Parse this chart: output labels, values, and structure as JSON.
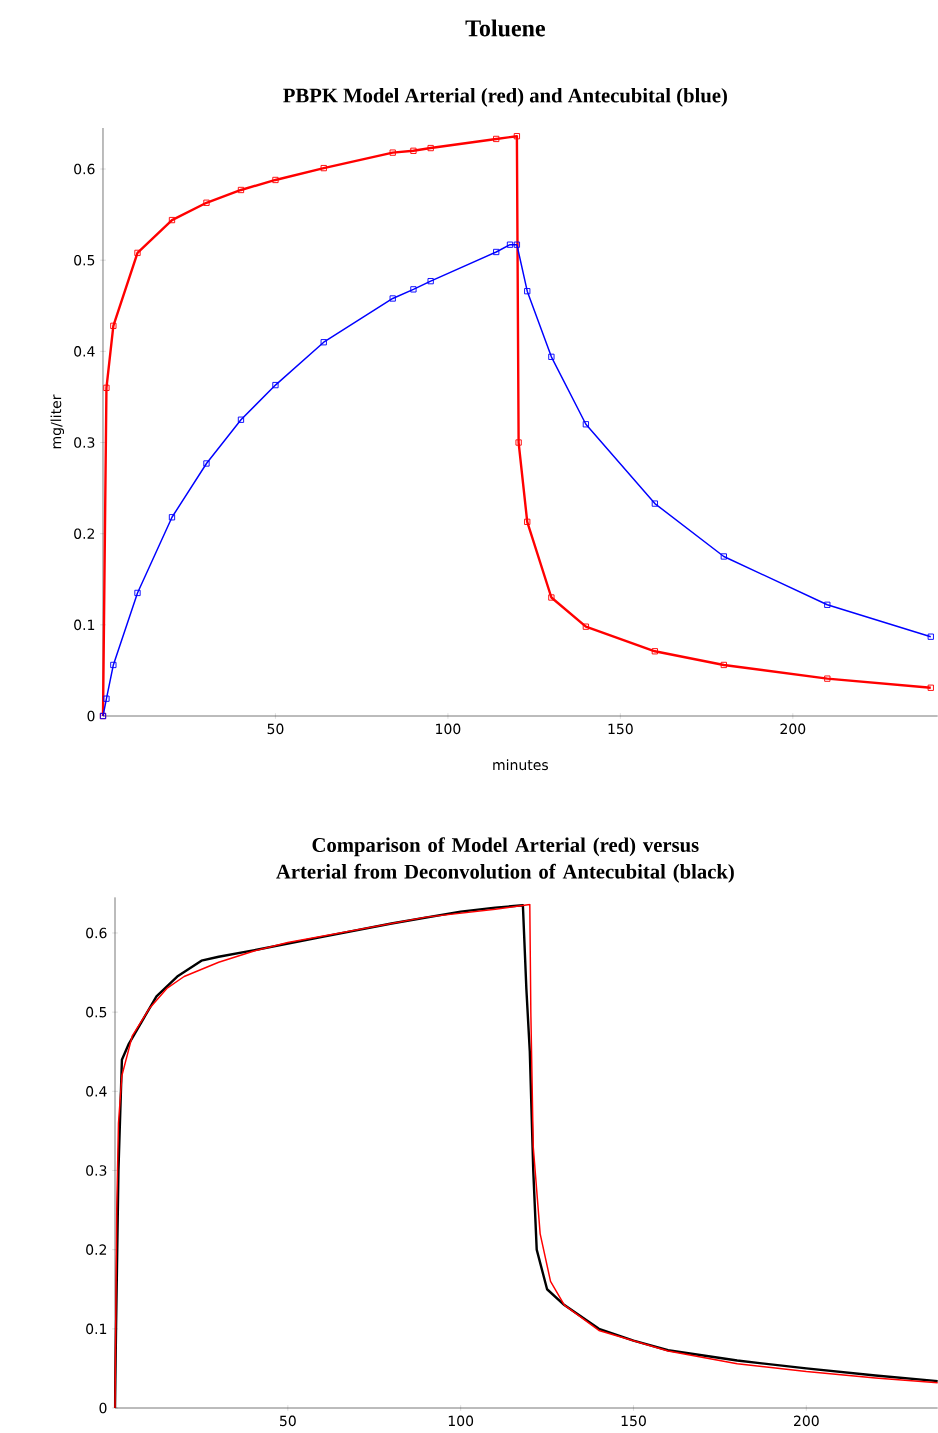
{
  "chart_data": [
    {
      "type": "line",
      "title": "Toluene",
      "subtitle": "PBPK Model Arterial (red) and Antecubital (blue)",
      "xlabel": "minutes",
      "ylabel": "mg/liter",
      "xlim": [
        0,
        242
      ],
      "ylim": [
        0,
        0.645
      ],
      "xticks": [
        50,
        100,
        150,
        200
      ],
      "yticks": [
        0,
        0.1,
        0.2,
        0.3,
        0.4,
        0.5,
        0.6
      ],
      "marker": "square",
      "series": [
        {
          "color": "#ff0000",
          "x": [
            0,
            1,
            3,
            10,
            20,
            30,
            40,
            50,
            64,
            84,
            90,
            95,
            114,
            120,
            120.5,
            123,
            130,
            140,
            160,
            180,
            210,
            240
          ],
          "values": [
            0,
            0.36,
            0.428,
            0.508,
            0.544,
            0.563,
            0.577,
            0.588,
            0.601,
            0.618,
            0.62,
            0.623,
            0.633,
            0.636,
            0.3,
            0.213,
            0.13,
            0.098,
            0.071,
            0.056,
            0.041,
            0.031
          ]
        },
        {
          "color": "#0000ff",
          "x": [
            0,
            1,
            3,
            10,
            20,
            30,
            40,
            50,
            64,
            84,
            90,
            95,
            114,
            118,
            120,
            123,
            130,
            140,
            160,
            180,
            210,
            240
          ],
          "values": [
            0,
            0.019,
            0.056,
            0.135,
            0.218,
            0.277,
            0.325,
            0.363,
            0.41,
            0.458,
            0.468,
            0.477,
            0.509,
            0.517,
            0.517,
            0.466,
            0.394,
            0.32,
            0.233,
            0.175,
            0.122,
            0.087
          ]
        }
      ]
    },
    {
      "type": "line",
      "title": "Comparison of Model Arterial (red) versus Arterial from Deconvolution of Antecubital (black)",
      "xlim": [
        0,
        238
      ],
      "ylim": [
        0,
        0.645
      ],
      "xticks": [
        50,
        100,
        150,
        200
      ],
      "yticks": [
        0,
        0.1,
        0.2,
        0.3,
        0.4,
        0.5,
        0.6
      ],
      "series": [
        {
          "color": "#000000",
          "x": [
            0,
            0.3,
            1,
            2,
            4,
            8,
            12,
            18,
            25,
            30,
            40,
            60,
            80,
            100,
            110,
            118,
            119,
            120,
            121,
            122,
            125,
            130,
            140,
            150,
            160,
            180,
            200,
            220,
            238
          ],
          "values": [
            0,
            0.1,
            0.3,
            0.44,
            0.46,
            0.49,
            0.52,
            0.545,
            0.565,
            0.57,
            0.578,
            0.595,
            0.612,
            0.627,
            0.632,
            0.635,
            0.53,
            0.45,
            0.3,
            0.2,
            0.15,
            0.13,
            0.1,
            0.085,
            0.073,
            0.06,
            0.05,
            0.041,
            0.034
          ]
        },
        {
          "color": "#ff0000",
          "x": [
            0,
            0.5,
            1,
            2,
            5,
            10,
            15,
            20,
            30,
            40,
            50,
            70,
            90,
            110,
            120,
            120.3,
            121,
            123,
            126,
            130,
            140,
            160,
            180,
            200,
            220,
            238
          ],
          "values": [
            0,
            0.25,
            0.36,
            0.42,
            0.47,
            0.505,
            0.53,
            0.545,
            0.563,
            0.577,
            0.588,
            0.604,
            0.62,
            0.63,
            0.636,
            0.5,
            0.33,
            0.22,
            0.16,
            0.13,
            0.098,
            0.072,
            0.056,
            0.046,
            0.038,
            0.032
          ]
        }
      ]
    }
  ]
}
